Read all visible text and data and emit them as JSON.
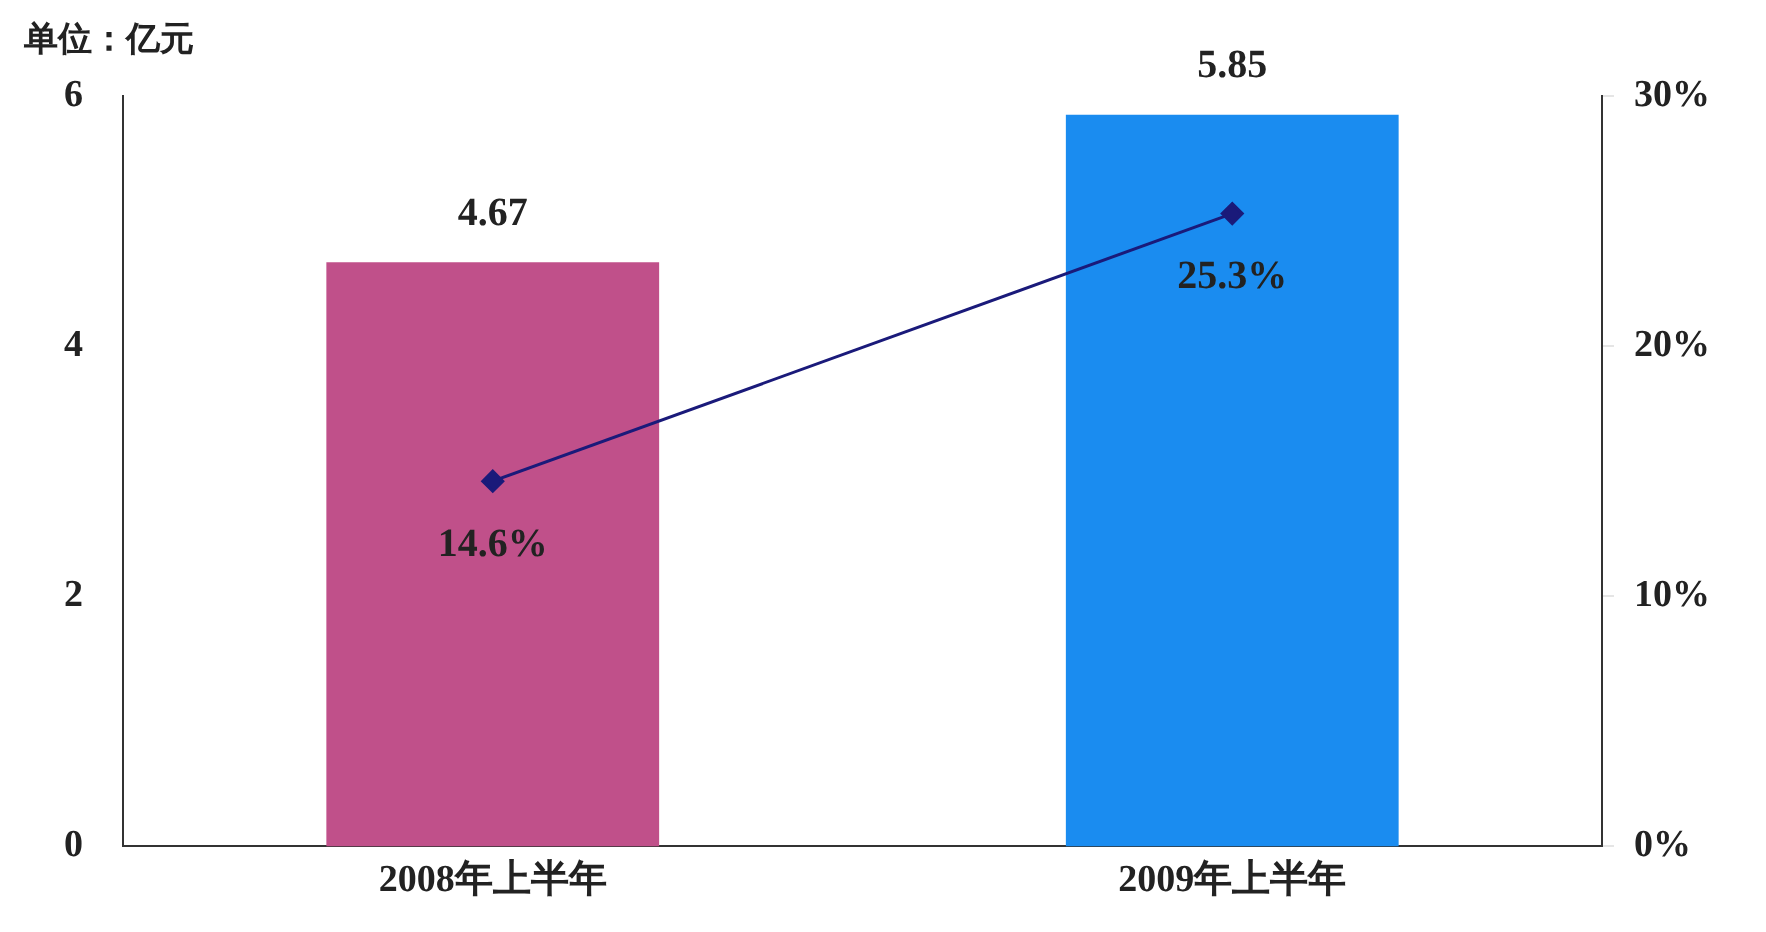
{
  "chart_data": {
    "type": "bar",
    "ylabel": "单位：亿元",
    "categories": [
      "2008年上半年",
      "2009年上半年"
    ],
    "series": [
      {
        "colors": [
          "#c0508a",
          "#1a8cf0"
        ],
        "values": [
          4.67,
          5.85
        ],
        "value_labels": [
          "4.67",
          "5.85"
        ]
      },
      {
        "type": "line",
        "axis": "y2",
        "color": "#1a1a7a",
        "values": [
          14.6,
          25.3
        ],
        "value_labels": [
          "14.6%",
          "25.3%"
        ]
      }
    ],
    "ylim": [
      0,
      6
    ],
    "yticks": [
      0,
      2,
      4,
      6
    ],
    "y2lim": [
      0,
      30
    ],
    "y2ticks": [
      {
        "value": 0,
        "label": "0%"
      },
      {
        "value": 10,
        "label": "10%"
      },
      {
        "value": 20,
        "label": "20%"
      },
      {
        "value": 30,
        "label": "30%"
      }
    ],
    "grid": false,
    "legend": false,
    "marker": "diamond",
    "line_style": "solid"
  }
}
